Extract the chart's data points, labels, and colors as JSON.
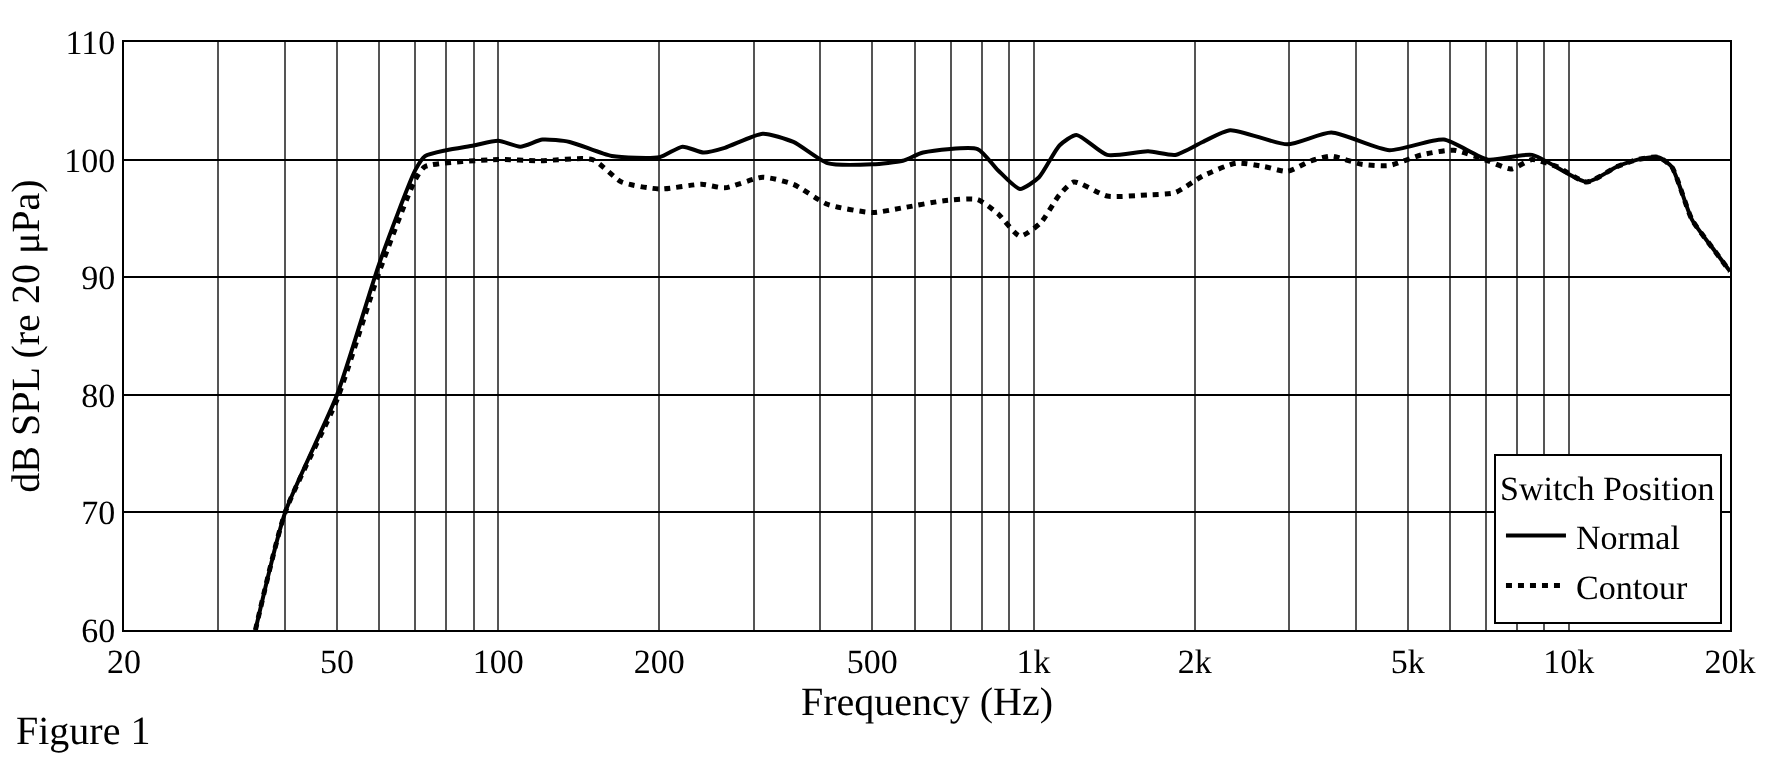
{
  "chart_data": {
    "type": "line",
    "xlabel": "Frequency (Hz)",
    "ylabel": "dB SPL (re 20 μPa)",
    "legend_title": "Switch Position",
    "annotations": [
      "Figure 1"
    ],
    "log": "x",
    "grid": true,
    "legend": "bottom right",
    "xlim": [
      20,
      20000
    ],
    "ylim": [
      60,
      110
    ],
    "xticks": [
      20,
      {
        "value": 30,
        "label": null
      },
      {
        "value": 40,
        "label": null
      },
      50,
      {
        "value": 60,
        "label": null
      },
      {
        "value": 70,
        "label": null
      },
      {
        "value": 80,
        "label": null
      },
      {
        "value": 90,
        "label": null
      },
      100,
      200,
      {
        "value": 300,
        "label": null
      },
      {
        "value": 400,
        "label": null
      },
      500,
      {
        "value": 600,
        "label": null
      },
      {
        "value": 700,
        "label": null
      },
      {
        "value": 800,
        "label": null
      },
      {
        "value": 900,
        "label": null
      },
      {
        "value": 1000,
        "label": "1k"
      },
      {
        "value": 2000,
        "label": "2k"
      },
      {
        "value": 3000,
        "label": null
      },
      {
        "value": 4000,
        "label": null
      },
      {
        "value": 5000,
        "label": "5k"
      },
      {
        "value": 6000,
        "label": null
      },
      {
        "value": 7000,
        "label": null
      },
      {
        "value": 8000,
        "label": null
      },
      {
        "value": 9000,
        "label": null
      },
      {
        "value": 10000,
        "label": "10k"
      },
      {
        "value": 20000,
        "label": "20k"
      }
    ],
    "yticks": [
      60,
      70,
      80,
      90,
      100,
      110
    ],
    "series": [
      {
        "name": "Normal",
        "color": "#000000",
        "line_style": "solid",
        "x": [
          35.2,
          40,
          50,
          60,
          70,
          73,
          80,
          90,
          100,
          110,
          121,
          136,
          163,
          200,
          221,
          242,
          265,
          312,
          356,
          412,
          500,
          570,
          622,
          786,
          858,
          943,
          1024,
          1118,
          1203,
          1373,
          1637,
          1840,
          2070,
          2330,
          2980,
          3600,
          4620,
          5840,
          7060,
          8540,
          10800,
          12300,
          13440,
          14680,
          15560,
          16980,
          18540,
          20000
        ],
        "values": [
          60,
          70,
          80,
          91.2,
          99.1,
          100.3,
          100.8,
          101.2,
          101.6,
          101.1,
          101.7,
          101.5,
          100.3,
          100.2,
          101.1,
          100.6,
          101.0,
          102.2,
          101.5,
          99.7,
          99.6,
          99.9,
          100.6,
          100.9,
          99.1,
          97.5,
          98.5,
          101.2,
          102.1,
          100.4,
          100.7,
          100.4,
          101.5,
          102.5,
          101.3,
          102.3,
          100.8,
          101.7,
          100.0,
          100.4,
          98.1,
          99.4,
          100.0,
          100.2,
          99.4,
          94.9,
          92.5,
          90.5
        ]
      },
      {
        "name": "Contour",
        "color": "#000000",
        "line_style": "dotted",
        "x": [
          35.2,
          40,
          50,
          60,
          70,
          73,
          100,
          120,
          150,
          170,
          200,
          240,
          265,
          312,
          356,
          412,
          500,
          570,
          680,
          786,
          858,
          943,
          1030,
          1118,
          1190,
          1373,
          1637,
          1840,
          2070,
          2390,
          2700,
          2980,
          3300,
          3600,
          4100,
          4620,
          5300,
          6100,
          7060,
          7800,
          8540,
          9500,
          10800,
          12300,
          13440,
          14680,
          15560,
          16980,
          18540,
          20000
        ],
        "values": [
          60,
          70,
          79.6,
          90.5,
          98.3,
          99.4,
          100.0,
          99.9,
          100.0,
          98.1,
          97.5,
          97.9,
          97.6,
          98.5,
          97.9,
          96.2,
          95.5,
          95.9,
          96.5,
          96.6,
          95.4,
          93.5,
          94.6,
          97.0,
          98.1,
          96.9,
          97.0,
          97.2,
          98.6,
          99.7,
          99.4,
          99.0,
          99.9,
          100.3,
          99.6,
          99.5,
          100.4,
          100.8,
          99.9,
          99.2,
          100.0,
          99.4,
          98.1,
          99.4,
          100.0,
          100.2,
          99.4,
          94.9,
          92.5,
          90.5
        ]
      }
    ]
  }
}
